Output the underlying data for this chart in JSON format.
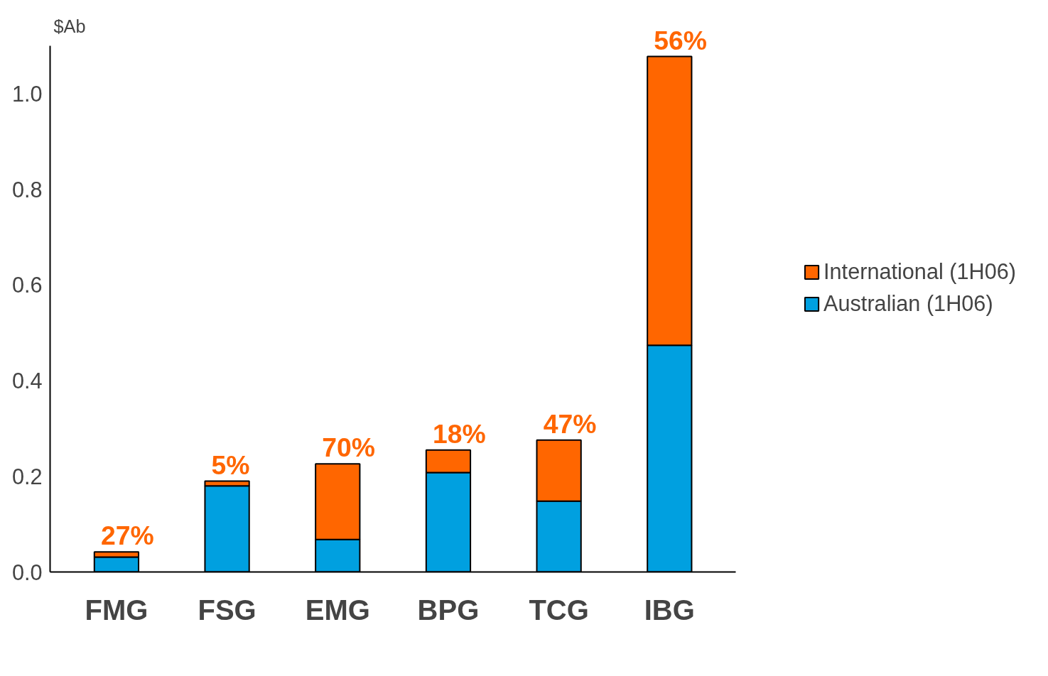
{
  "chart_data": {
    "type": "bar",
    "stacked": true,
    "ylabel": "$Ab",
    "categories": [
      "FMG",
      "FSG",
      "EMG",
      "BPG",
      "TCG",
      "IBG"
    ],
    "series": [
      {
        "name": "Australian (1H06)",
        "color": "#00a0e0",
        "values": [
          0.031,
          0.18,
          0.068,
          0.208,
          0.148,
          0.474
        ]
      },
      {
        "name": "International (1H06)",
        "color": "#ff6600",
        "values": [
          0.011,
          0.01,
          0.158,
          0.047,
          0.128,
          0.604
        ]
      }
    ],
    "ylim": [
      0,
      1.1
    ],
    "yticks": [
      {
        "value": 0,
        "label": "0.0"
      },
      {
        "value": 0.2,
        "label": "0.2"
      },
      {
        "value": 0.4,
        "label": "0.4"
      },
      {
        "value": 0.6,
        "label": "0.6"
      },
      {
        "value": 0.8,
        "label": "0.8"
      },
      {
        "value": 1.0,
        "label": "1.0"
      }
    ],
    "annotations": [
      {
        "text": "27%",
        "x": "FMG",
        "y": 0.042
      },
      {
        "text": "5%",
        "x": "FSG",
        "y": 0.19
      },
      {
        "text": "70%",
        "x": "EMG",
        "y": 0.226
      },
      {
        "text": "18%",
        "x": "BPG",
        "y": 0.255
      },
      {
        "text": "47%",
        "x": "TCG",
        "y": 0.276
      },
      {
        "text": "56%",
        "x": "IBG",
        "y": 1.078
      }
    ],
    "grid": false,
    "legend": "right"
  }
}
